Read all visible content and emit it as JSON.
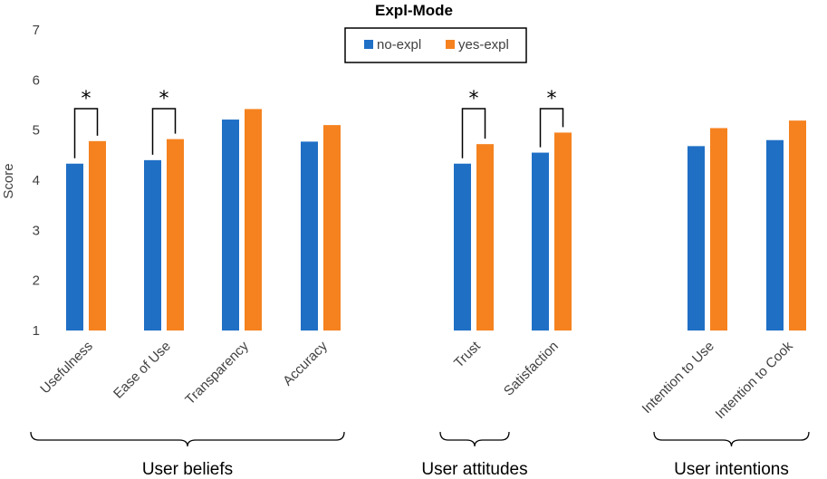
{
  "chart_data": {
    "type": "bar",
    "title": "Expl-Mode",
    "ylabel": "Score",
    "xlabel": "",
    "ylim": [
      1,
      7
    ],
    "yticks": [
      "1",
      "2",
      "3",
      "4",
      "5",
      "6",
      "7"
    ],
    "grid": false,
    "legend_position": "top-center",
    "categories": [
      "Usefulness",
      "Ease of Use",
      "Transparency",
      "Accuracy",
      "Trust",
      "Satisfaction",
      "Intention to Use",
      "Intention to Cook"
    ],
    "series": [
      {
        "name": "no-expl",
        "color": "#1f6fc5",
        "values": [
          4.33,
          4.4,
          5.21,
          4.77,
          4.33,
          4.55,
          4.68,
          4.8
        ]
      },
      {
        "name": "yes-expl",
        "color": "#f5821f",
        "values": [
          4.78,
          4.82,
          5.42,
          5.1,
          4.72,
          4.95,
          5.04,
          5.19
        ]
      }
    ],
    "significance": [
      {
        "category": "Usefulness",
        "mark": "*"
      },
      {
        "category": "Ease of Use",
        "mark": "*"
      },
      {
        "category": "Trust",
        "mark": "*"
      },
      {
        "category": "Satisfaction",
        "mark": "*"
      }
    ],
    "groups": [
      {
        "label": "User beliefs",
        "categories": [
          "Usefulness",
          "Ease of Use",
          "Transparency",
          "Accuracy"
        ]
      },
      {
        "label": "User attitudes",
        "categories": [
          "Trust",
          "Satisfaction"
        ]
      },
      {
        "label": "User intentions",
        "categories": [
          "Intention to Use",
          "Intention to Cook"
        ]
      }
    ]
  }
}
